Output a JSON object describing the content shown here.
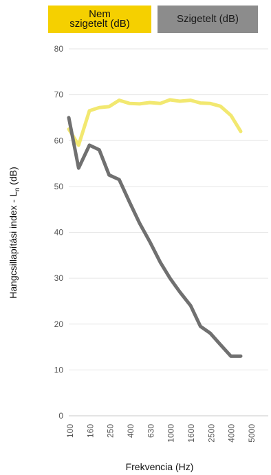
{
  "chart_data": {
    "type": "line",
    "xlabel": "Frekvencia (Hz)",
    "ylabel": "Hangcsillapítási index - Ln (dB)",
    "ylabel_main": "Hangcsillapítási index - L",
    "ylabel_sub": "n",
    "ylabel_unit": " (dB)",
    "ylim": [
      0,
      80
    ],
    "yticks": [
      "0",
      "10",
      "20",
      "30",
      "40",
      "50",
      "60",
      "70",
      "80"
    ],
    "x_tick_labels": [
      "100",
      "160",
      "250",
      "400",
      "630",
      "1000",
      "1600",
      "2500",
      "4000",
      "5000"
    ],
    "grid": true,
    "legend_position": "top",
    "series": [
      {
        "name": "Nem szigetelt (dB)",
        "color": "#f2e870",
        "x": [
          100,
          125,
          160,
          200,
          250,
          315,
          400,
          500,
          630,
          800,
          1000,
          1250,
          1600,
          2000,
          2500,
          3150,
          4000,
          5000
        ],
        "y": [
          62.5,
          59,
          66.5,
          67.2,
          67.4,
          68.8,
          68.1,
          68,
          68.3,
          68.1,
          68.9,
          68.6,
          68.8,
          68.2,
          68.1,
          67.5,
          65.5,
          62
        ]
      },
      {
        "name": "Szigetelt (dB)",
        "color": "#707070",
        "x": [
          100,
          125,
          160,
          200,
          250,
          315,
          400,
          500,
          630,
          800,
          1000,
          1250,
          1600,
          2000,
          2500,
          3150,
          4000,
          5000
        ],
        "y": [
          65,
          54,
          59,
          58,
          52.5,
          51.5,
          46.5,
          42,
          38,
          33.5,
          30,
          27,
          24,
          19.5,
          18,
          15.5,
          13,
          13
        ]
      }
    ]
  },
  "legend": {
    "insulated_off_line1": "Nem",
    "insulated_off_line2": "szigetelt (dB)",
    "insulated_on": "Szigetelt (dB)"
  }
}
